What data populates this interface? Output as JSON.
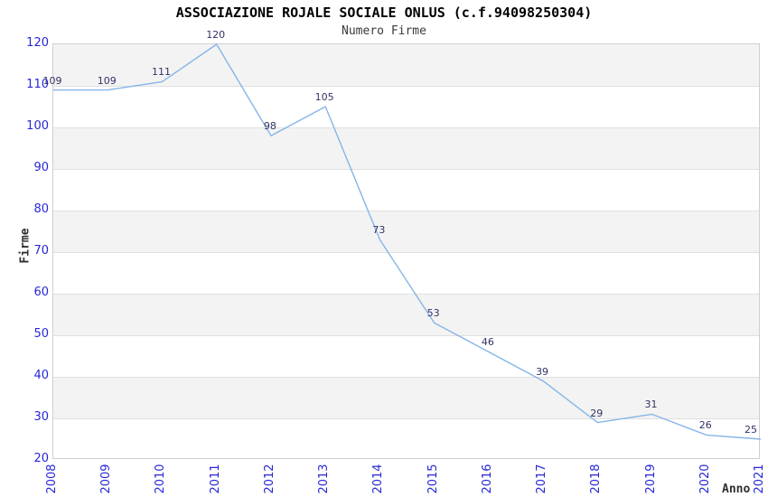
{
  "header": {
    "title": "ASSOCIAZIONE ROJALE SOCIALE ONLUS (c.f.94098250304)",
    "subtitle": "Numero Firme"
  },
  "axes": {
    "x_label": "Anno",
    "y_label": "Firme"
  },
  "chart_data": {
    "type": "line",
    "title": "ASSOCIAZIONE ROJALE SOCIALE ONLUS (c.f.94098250304)",
    "subtitle": "Numero Firme",
    "xlabel": "Anno",
    "ylabel": "Firme",
    "categories": [
      "2008",
      "2009",
      "2010",
      "2011",
      "2012",
      "2013",
      "2014",
      "2015",
      "2016",
      "2017",
      "2018",
      "2019",
      "2020",
      "2021"
    ],
    "values": [
      109,
      109,
      111,
      120,
      98,
      105,
      73,
      53,
      46,
      39,
      29,
      31,
      26,
      25
    ],
    "series": [
      {
        "name": "Numero Firme",
        "values": [
          109,
          109,
          111,
          120,
          98,
          105,
          73,
          53,
          46,
          39,
          29,
          31,
          26,
          25
        ]
      }
    ],
    "ylim": [
      20,
      120
    ],
    "y_ticks": [
      120,
      110,
      100,
      90,
      80,
      70,
      60,
      50,
      40,
      30,
      20
    ],
    "grid": "horizontal",
    "banded_background": true,
    "legend_position": "none",
    "data_labels_visible": true,
    "colors": {
      "line": "#85b5e8",
      "tick_label": "#2727d8",
      "data_label": "#333366",
      "band": "#f3f3f3",
      "grid": "#e0e0e0",
      "plot_border": "#cfcfcf",
      "title": "#000000",
      "subtitle": "#3a3a3a",
      "axis_title": "#303030"
    }
  }
}
